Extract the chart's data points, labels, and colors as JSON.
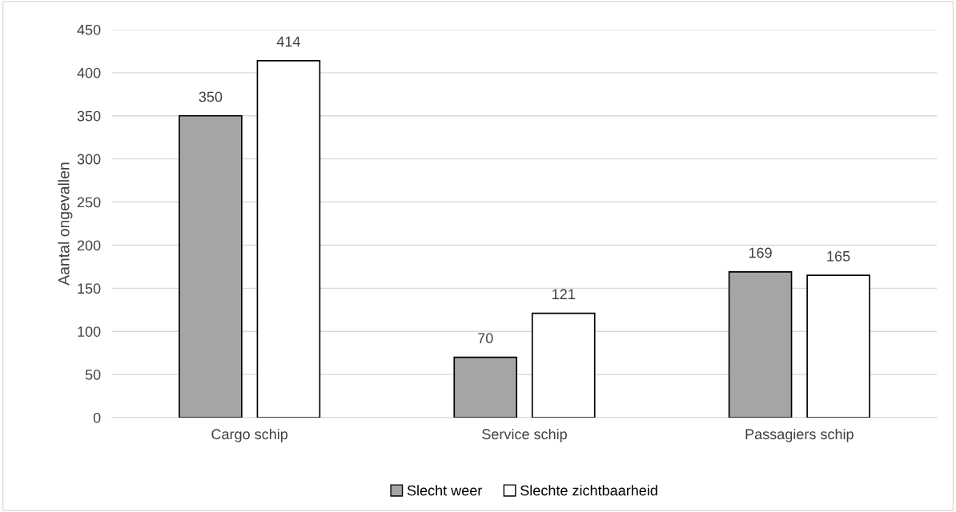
{
  "chart_data": {
    "type": "bar",
    "ylabel": "Aantal ongevallen",
    "categories": [
      "Cargo schip",
      "Service schip",
      "Passagiers schip"
    ],
    "series": [
      {
        "name": "Slecht weer",
        "color": "#a5a5a5",
        "values": [
          350,
          70,
          169
        ]
      },
      {
        "name": "Slechte zichtbaarheid",
        "color": "#ffffff",
        "values": [
          414,
          121,
          165
        ]
      }
    ],
    "ylim": [
      0,
      450
    ],
    "yticks": [
      0,
      50,
      100,
      150,
      200,
      250,
      300,
      350,
      400,
      450
    ],
    "grid": "y",
    "legend": "bottom",
    "data_labels": true
  }
}
